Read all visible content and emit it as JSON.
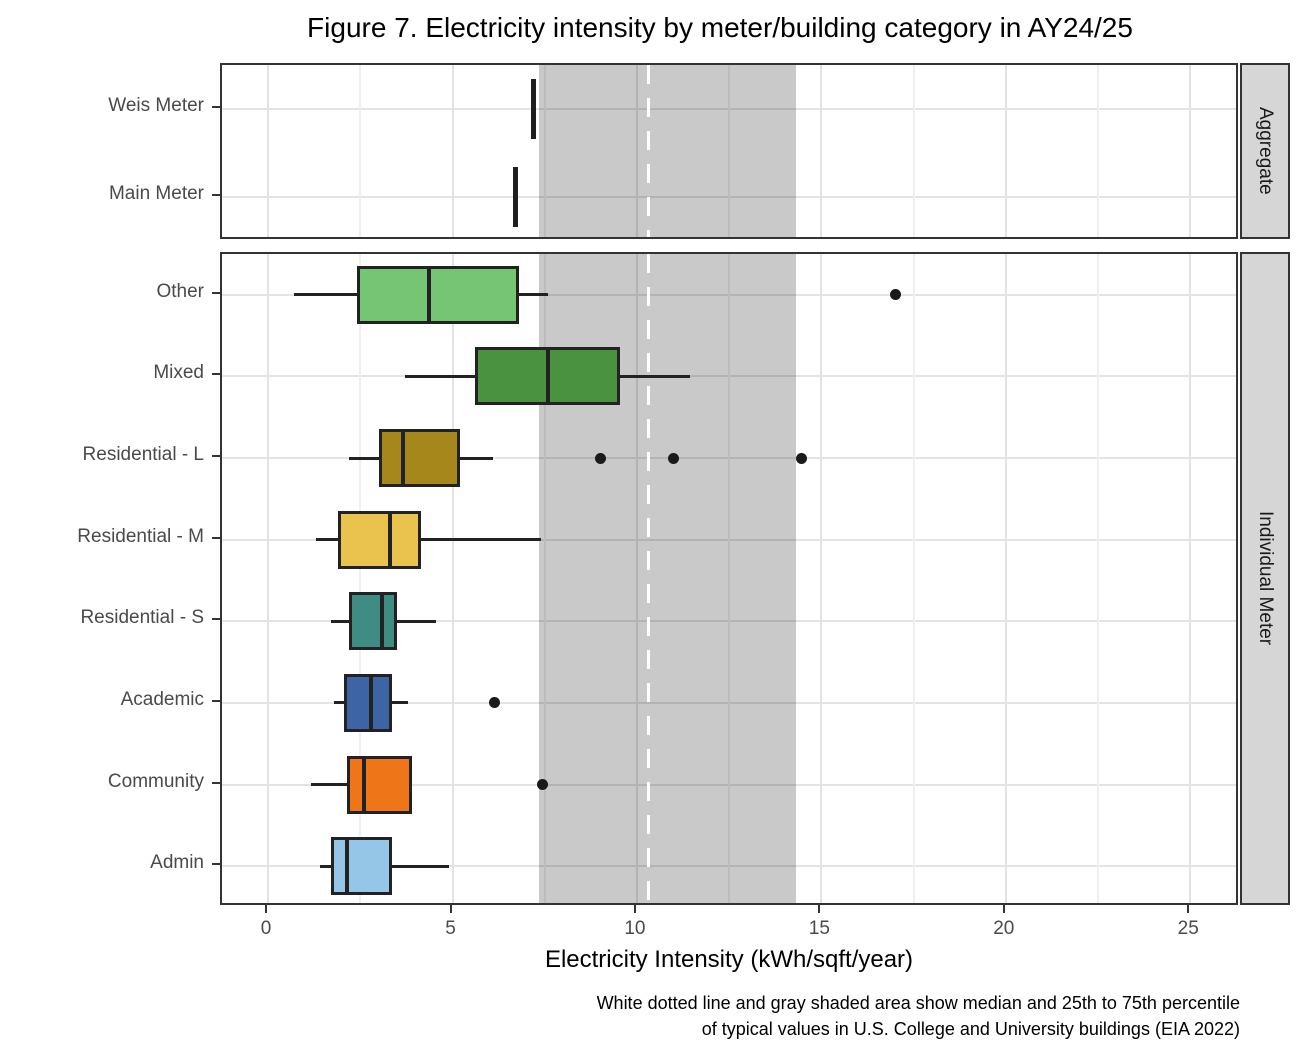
{
  "figure": {
    "title": "Figure 7. Electricity intensity by meter/building category in AY24/25",
    "caption_line1": "White dotted line and gray shaded area show median and 25th to 75th percentile",
    "caption_line2": "of typical values in U.S. College and University buildings (EIA 2022)"
  },
  "chart_data": {
    "type": "boxplot",
    "orientation": "horizontal",
    "title": "Figure 7. Electricity intensity by meter/building category in AY24/25",
    "xlabel": "Electricity Intensity (kWh/sqft/year)",
    "xticks": [
      0,
      5,
      10,
      15,
      20,
      25
    ],
    "minor_xticks": [
      2.5,
      7.5,
      12.5,
      17.5,
      22.5
    ],
    "xlim": [
      -1.25,
      26.35
    ],
    "grid": true,
    "reference": {
      "p25": 7.35,
      "median": 10.3,
      "p75": 14.3,
      "band_color": "#c9c9c9",
      "line_color": "#ffffff",
      "line_style": "dashed"
    },
    "panels": [
      {
        "strip": "Aggregate",
        "rows": [
          {
            "category": "Weis Meter",
            "type": "single",
            "value": 7.2
          },
          {
            "category": "Main Meter",
            "type": "single",
            "value": 6.7
          }
        ]
      },
      {
        "strip": "Individual Meter",
        "rows": [
          {
            "category": "Other",
            "type": "box",
            "color": "#76c575",
            "whisker_low": 0.7,
            "q1": 2.4,
            "median": 4.35,
            "q3": 6.8,
            "whisker_high": 7.6,
            "outliers": [
              17.0
            ]
          },
          {
            "category": "Mixed",
            "type": "box",
            "color": "#4a9240",
            "whisker_low": 3.7,
            "q1": 5.6,
            "median": 7.6,
            "q3": 9.55,
            "whisker_high": 11.45,
            "outliers": []
          },
          {
            "category": "Residential - L",
            "type": "box",
            "color": "#a6871b",
            "whisker_low": 2.2,
            "q1": 3.0,
            "median": 3.65,
            "q3": 5.2,
            "whisker_high": 6.1,
            "outliers": [
              9.0,
              11.0,
              14.45
            ]
          },
          {
            "category": "Residential - M",
            "type": "box",
            "color": "#eac34f",
            "whisker_low": 1.3,
            "q1": 1.9,
            "median": 3.3,
            "q3": 4.15,
            "whisker_high": 7.4,
            "outliers": []
          },
          {
            "category": "Residential - S",
            "type": "box",
            "color": "#3e8c82",
            "whisker_low": 1.7,
            "q1": 2.2,
            "median": 3.1,
            "q3": 3.5,
            "whisker_high": 4.55,
            "outliers": []
          },
          {
            "category": "Academic",
            "type": "box",
            "color": "#3d64a5",
            "whisker_low": 1.8,
            "q1": 2.05,
            "median": 2.8,
            "q3": 3.35,
            "whisker_high": 3.8,
            "outliers": [
              6.15
            ]
          },
          {
            "category": "Community",
            "type": "box",
            "color": "#ee7518",
            "whisker_low": 1.15,
            "q1": 2.15,
            "median": 2.6,
            "q3": 3.9,
            "whisker_high": 3.9,
            "outliers": [
              7.45
            ]
          },
          {
            "category": "Admin",
            "type": "box",
            "color": "#95c6e8",
            "whisker_low": 1.4,
            "q1": 1.7,
            "median": 2.15,
            "q3": 3.35,
            "whisker_high": 4.9,
            "outliers": []
          }
        ]
      }
    ],
    "caption": [
      "White dotted line and gray shaded area show median and 25th to 75th percentile",
      "of typical values in U.S. College and University buildings (EIA 2022)"
    ]
  }
}
